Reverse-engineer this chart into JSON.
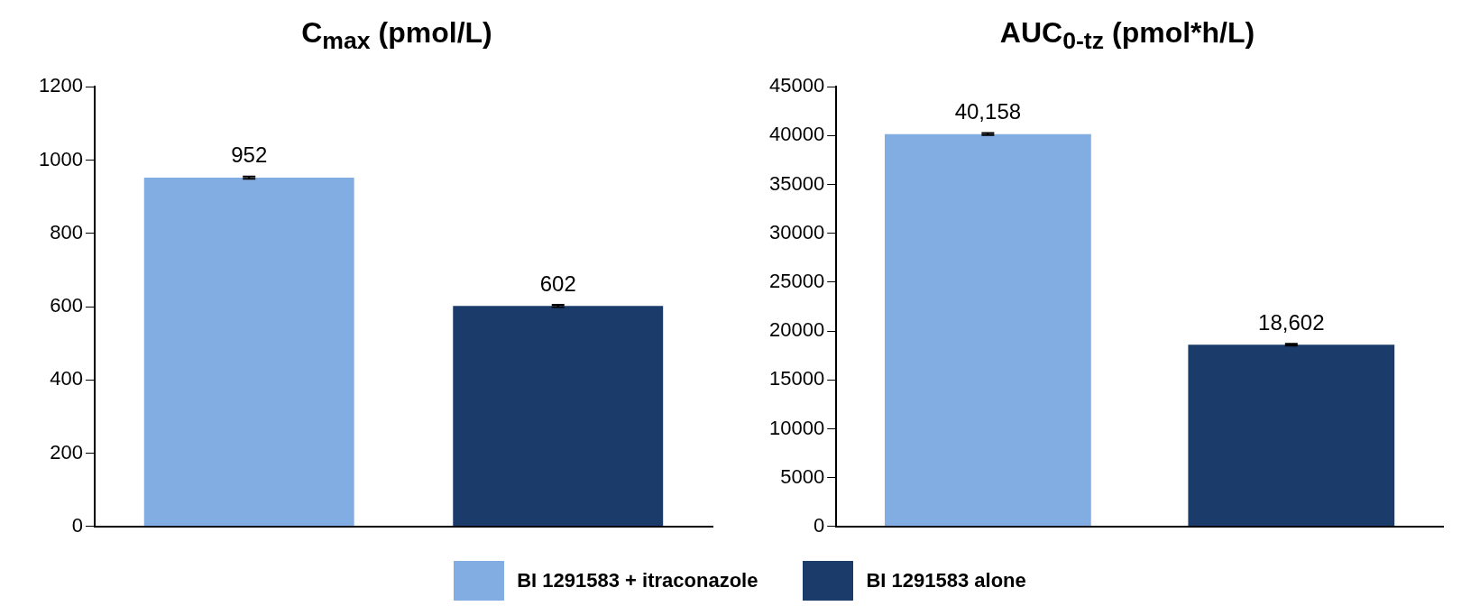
{
  "chart_data": [
    {
      "type": "bar",
      "title": "C$_{max}$ (pmol/L)",
      "categories": [
        null,
        null
      ],
      "series": [
        {
          "name": "BI 1291583 + itraconazole",
          "color": "#82ade2",
          "values": [
            952,
            null
          ],
          "value_labels": [
            "952",
            null
          ],
          "errors": [
            3,
            null
          ]
        },
        {
          "name": "BI 1291583 alone",
          "color": "#1b3c6b",
          "values": [
            null,
            602
          ],
          "value_labels": [
            null,
            "602"
          ],
          "errors": [
            null,
            3
          ]
        }
      ],
      "ylim": [
        0,
        1200
      ],
      "yticks": [
        0,
        200,
        400,
        600,
        800,
        1000,
        1200
      ],
      "grid": false,
      "legend": "bottom"
    },
    {
      "type": "bar",
      "title": "AUC$_{0-tz}$ (pmol*h/L)",
      "categories": [
        null,
        null
      ],
      "series": [
        {
          "color": "#82ade2",
          "values": [
            40158,
            null
          ],
          "value_labels": [
            "40,158",
            null
          ],
          "errors": [
            100,
            null
          ]
        },
        {
          "color": "#1b3c6b",
          "values": [
            null,
            18602
          ],
          "value_labels": [
            null,
            "18,602"
          ],
          "errors": [
            null,
            100
          ]
        }
      ],
      "ylim": [
        0,
        45000
      ],
      "yticks": [
        0,
        5000,
        10000,
        15000,
        20000,
        25000,
        30000,
        35000,
        40000,
        45000
      ],
      "grid": false
    }
  ]
}
